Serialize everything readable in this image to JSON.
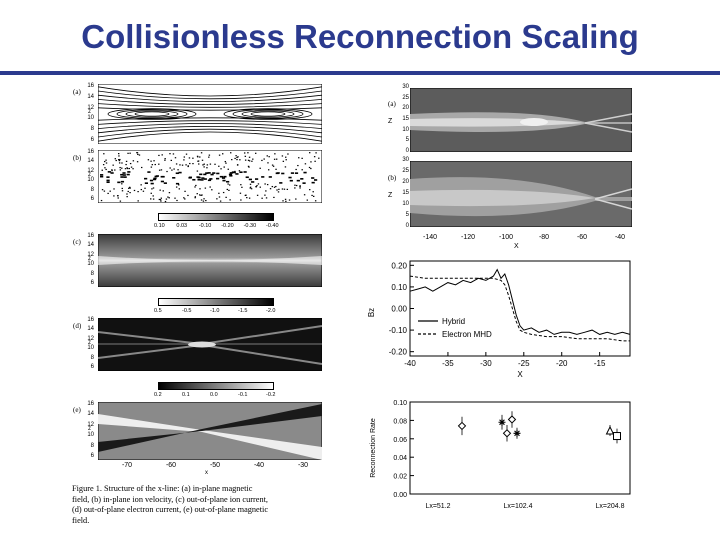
{
  "slide": {
    "title": "Collisionless Reconnection Scaling"
  },
  "left_figure": {
    "panels": [
      {
        "label": "(a)",
        "yticks": [
          "16",
          "14",
          "12",
          "10",
          "8",
          "6"
        ],
        "yname": "z"
      },
      {
        "label": "(b)",
        "yticks": [
          "16",
          "14",
          "12",
          "10",
          "8",
          "6"
        ],
        "yname": "z"
      },
      {
        "label": "(c)",
        "yticks": [
          "16",
          "14",
          "12",
          "10",
          "8",
          "6"
        ],
        "yname": "z"
      },
      {
        "label": "(d)",
        "yticks": [
          "16",
          "14",
          "12",
          "10",
          "8",
          "6"
        ],
        "yname": "z"
      },
      {
        "label": "(e)",
        "yticks": [
          "16",
          "14",
          "12",
          "10",
          "8",
          "6"
        ],
        "yname": "z"
      }
    ],
    "colorbars": [
      {
        "ticks": [
          "0.10",
          "0.03",
          "-0.10",
          "-0.20",
          "-0.30",
          "-0.40"
        ]
      },
      {
        "ticks": [
          "0.5",
          "-0.5",
          "-1.0",
          "-1.5",
          "-2.0"
        ]
      },
      {
        "ticks": [
          "0.2",
          "0.1",
          "0.0",
          "-0.1",
          "-0.2"
        ]
      }
    ],
    "xticks": [
      "-70",
      "-60",
      "-50",
      "-40",
      "-30"
    ],
    "xlabel": "x"
  },
  "caption": {
    "lines": [
      "Figure 1.  Structure of the x-line: (a) in-plane magnetic",
      "field, (b) in-plane ion velocity, (c) out-of-plane ion current,",
      "(d) out-of-plane electron current, (e) out-of-plane magnetic",
      "field."
    ]
  },
  "right_top": {
    "panels": [
      {
        "label": "(a)",
        "yname": "Z",
        "yticks": [
          "30",
          "25",
          "20",
          "15",
          "10",
          "5",
          "0"
        ]
      },
      {
        "label": "(b)",
        "yname": "Z",
        "yticks": [
          "30",
          "25",
          "20",
          "15",
          "10",
          "5",
          "0"
        ]
      }
    ],
    "xticks": [
      "-140",
      "-120",
      "-100",
      "-80",
      "-60",
      "-40"
    ],
    "xlabel": "X"
  },
  "chart_data": [
    {
      "type": "line",
      "ylabel": "Bz",
      "xlabel": "X",
      "xlim": [
        -40,
        -11
      ],
      "ylim": [
        -0.22,
        0.22
      ],
      "xticks": [
        "-40",
        "-35",
        "-30",
        "-25",
        "-20",
        "-15"
      ],
      "yticks": [
        "0.20",
        "0.10",
        "0.00",
        "-0.10",
        "-0.20"
      ],
      "legend": "right-center",
      "series": [
        {
          "name": "Hybrid",
          "style": "solid",
          "x": [
            -40,
            -39,
            -38,
            -37,
            -36,
            -35,
            -34,
            -33,
            -32,
            -31,
            -30,
            -29,
            -28.5,
            -28,
            -27.5,
            -27,
            -26.5,
            -26,
            -25.5,
            -25,
            -24,
            -23,
            -22,
            -21,
            -20,
            -19,
            -18,
            -17,
            -16,
            -15,
            -14,
            -13,
            -12,
            -11
          ],
          "y": [
            0.08,
            0.09,
            0.1,
            0.08,
            0.1,
            0.12,
            0.11,
            0.13,
            0.12,
            0.14,
            0.13,
            0.15,
            0.18,
            0.14,
            0.16,
            0.11,
            0.04,
            -0.03,
            -0.08,
            -0.1,
            -0.09,
            -0.11,
            -0.1,
            -0.12,
            -0.11,
            -0.11,
            -0.12,
            -0.11,
            -0.1,
            -0.12,
            -0.11,
            -0.12,
            -0.11,
            -0.12
          ]
        },
        {
          "name": "Electron MHD",
          "style": "dashed",
          "x": [
            -40,
            -38,
            -36,
            -34,
            -32,
            -30,
            -29,
            -28,
            -27.5,
            -27,
            -26.5,
            -26,
            -25.5,
            -25,
            -24,
            -22,
            -20,
            -18,
            -16,
            -14,
            -12,
            -11
          ],
          "y": [
            0.15,
            0.14,
            0.14,
            0.14,
            0.14,
            0.14,
            0.14,
            0.13,
            0.11,
            0.06,
            0.0,
            -0.06,
            -0.1,
            -0.11,
            -0.12,
            -0.13,
            -0.13,
            -0.14,
            -0.14,
            -0.14,
            -0.15,
            -0.15
          ]
        }
      ]
    },
    {
      "type": "scatter",
      "ylabel": "Reconnection Rate",
      "ylim": [
        0,
        0.1
      ],
      "yticks": [
        "0.10",
        "0.08",
        "0.06",
        "0.04",
        "0.02",
        "0.00"
      ],
      "categories": [
        "Lx=51.2",
        "Lx=102.4",
        "Lx=204.8"
      ],
      "points": [
        {
          "x": 0,
          "y": 0.074,
          "err": 0.01,
          "marker": "diamond"
        },
        {
          "x": 0.93,
          "y": 0.078,
          "err": 0.008,
          "marker": "star"
        },
        {
          "x": 0.98,
          "y": 0.066,
          "err": 0.009,
          "marker": "diamond"
        },
        {
          "x": 1.03,
          "y": 0.081,
          "err": 0.009,
          "marker": "diamond"
        },
        {
          "x": 1.08,
          "y": 0.066,
          "err": 0.006,
          "marker": "star"
        },
        {
          "x": 1.95,
          "y": 0.069,
          "err": 0.006,
          "marker": "triangle"
        },
        {
          "x": 2.02,
          "y": 0.063,
          "err": 0.008,
          "marker": "square"
        }
      ]
    }
  ]
}
